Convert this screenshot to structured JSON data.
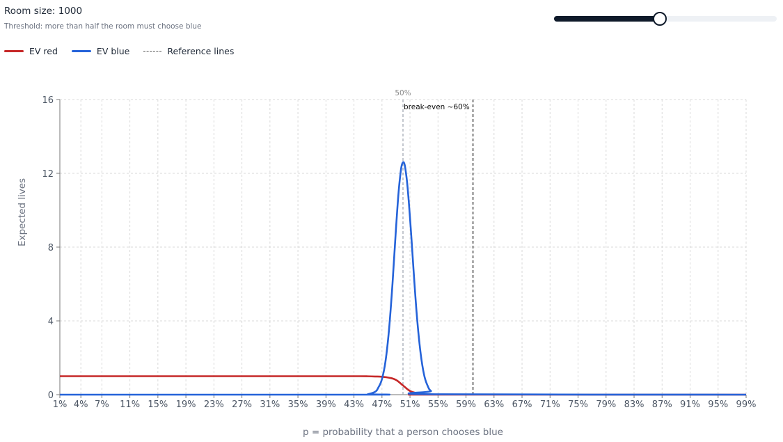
{
  "controls": {
    "room_size_label": "Room size: 1000",
    "threshold_text": "Threshold: more than half the room must choose blue",
    "slider": {
      "value_fraction": 0.475
    }
  },
  "legend": {
    "items": [
      {
        "label": "EV red",
        "color": "#c62828",
        "style": "solid"
      },
      {
        "label": "EV blue",
        "color": "#2563d9",
        "style": "solid"
      },
      {
        "label": "Reference lines",
        "color": "#555555",
        "style": "dashed"
      }
    ]
  },
  "chart_data": {
    "type": "line",
    "xlabel": "p = probability that a person chooses blue",
    "ylabel": "Expected lives",
    "xlim": [
      1,
      99
    ],
    "ylim": [
      0,
      16
    ],
    "x_ticks": [
      "1%",
      "4%",
      "7%",
      "11%",
      "15%",
      "19%",
      "23%",
      "27%",
      "31%",
      "35%",
      "39%",
      "43%",
      "47%",
      "51%",
      "55%",
      "59%",
      "63%",
      "67%",
      "71%",
      "75%",
      "79%",
      "83%",
      "87%",
      "91%",
      "95%",
      "99%"
    ],
    "x_tick_values": [
      1,
      4,
      7,
      11,
      15,
      19,
      23,
      27,
      31,
      35,
      39,
      43,
      47,
      51,
      55,
      59,
      63,
      67,
      71,
      75,
      79,
      83,
      87,
      91,
      95,
      99
    ],
    "y_ticks": [
      "0",
      "4",
      "8",
      "12",
      "16"
    ],
    "y_tick_values": [
      0,
      4,
      8,
      12,
      16
    ],
    "grid": true,
    "reference_lines": [
      {
        "x": 50,
        "label": "50%",
        "color": "#9ca3af"
      },
      {
        "x": 60,
        "label": "break-even ~60%",
        "color": "#111111"
      }
    ],
    "series": [
      {
        "name": "EV red",
        "color": "#c62828",
        "x": [
          1,
          40,
          44,
          45,
          46,
          47,
          48,
          49,
          50,
          51,
          52,
          53,
          54,
          55,
          99
        ],
        "y": [
          1.0,
          1.0,
          1.0,
          0.995,
          0.985,
          0.97,
          0.92,
          0.8,
          0.5,
          0.2,
          0.08,
          0.03,
          0.01,
          0.0,
          0.0
        ]
      },
      {
        "name": "EV blue",
        "color": "#2563d9",
        "x": [
          1,
          44,
          45,
          46,
          46.5,
          47,
          47.5,
          48,
          48.5,
          49,
          49.5,
          50,
          50.5,
          51,
          51.5,
          52,
          52.5,
          53,
          53.5,
          54,
          55,
          99
        ],
        "y": [
          0.0,
          0.0,
          0.03,
          0.15,
          0.4,
          0.85,
          1.8,
          3.5,
          6.0,
          9.0,
          11.5,
          12.6,
          11.8,
          9.6,
          6.8,
          4.2,
          2.3,
          1.1,
          0.5,
          0.2,
          0.02,
          0.0
        ]
      }
    ]
  }
}
